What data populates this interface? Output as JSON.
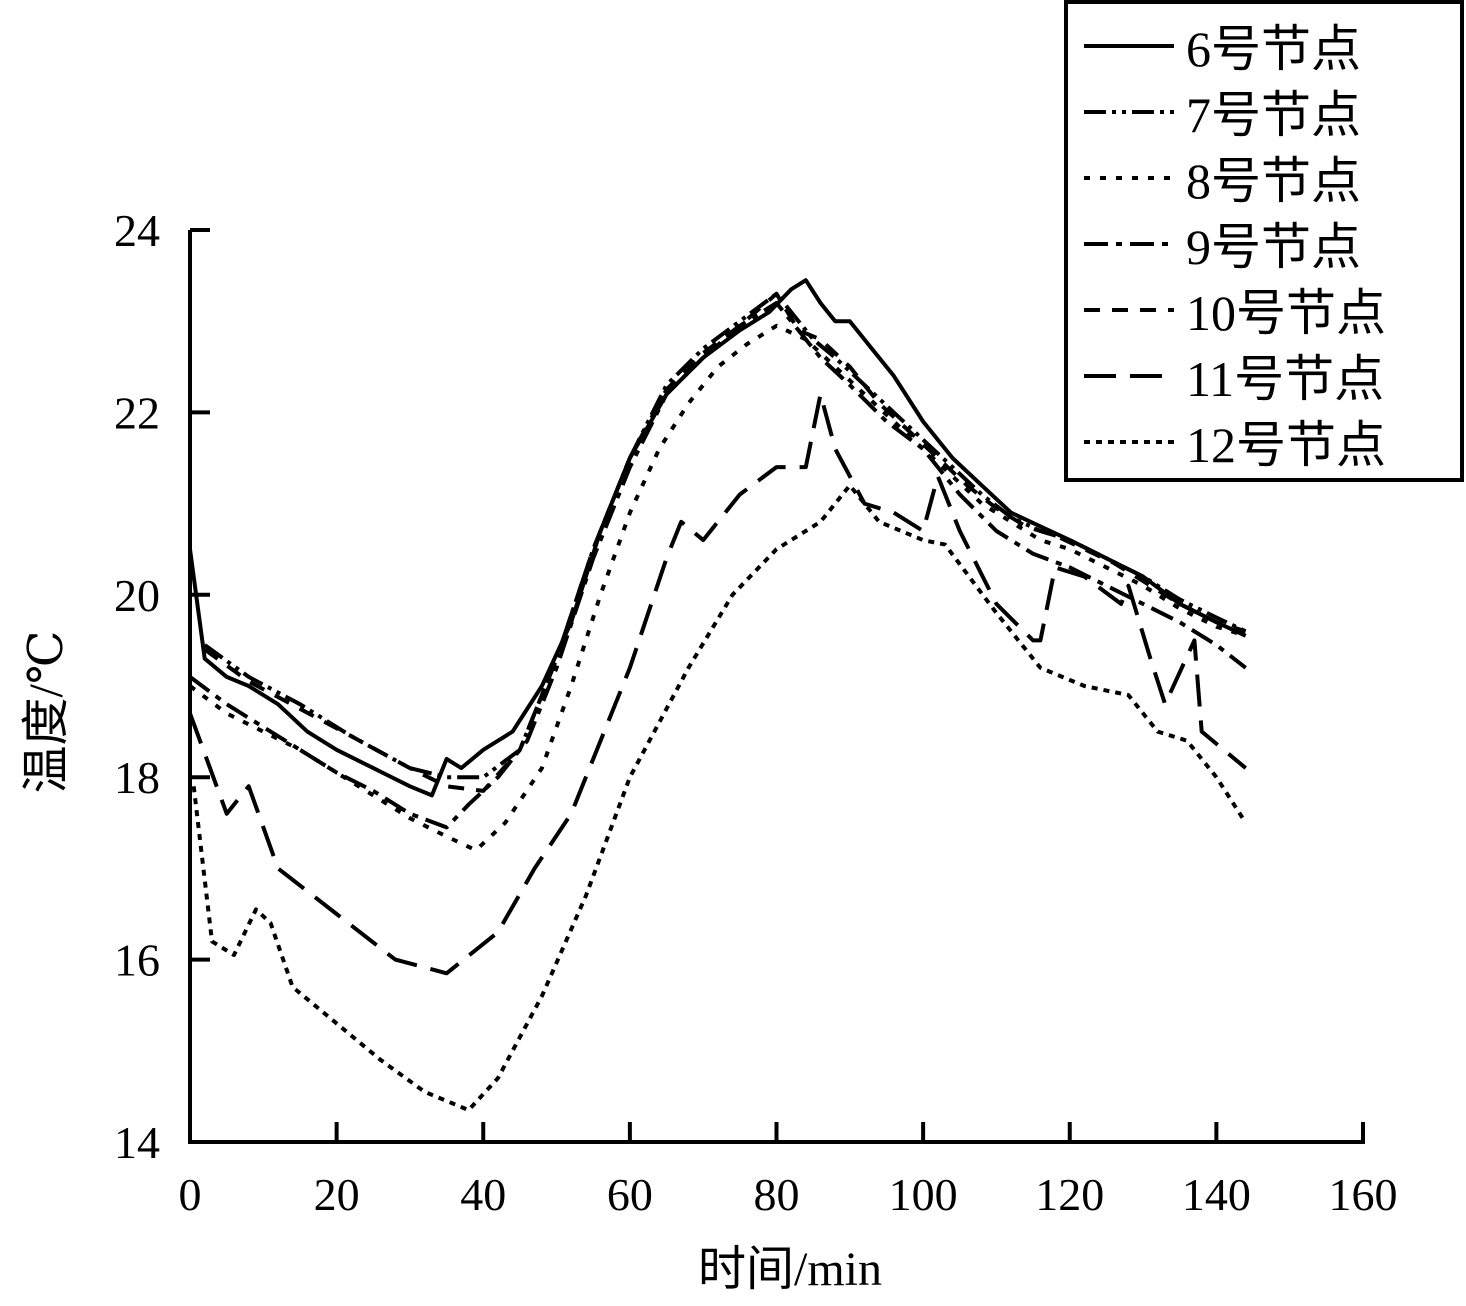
{
  "chart_data": {
    "type": "line",
    "title": "",
    "xlabel": "时间/min",
    "ylabel": "温度/℃",
    "xlim": [
      0,
      160
    ],
    "ylim": [
      14,
      24
    ],
    "xticks": [
      0,
      20,
      40,
      60,
      80,
      100,
      120,
      140,
      160
    ],
    "yticks": [
      14,
      16,
      18,
      20,
      22,
      24
    ],
    "grid": false,
    "legend_position": "top-right",
    "series": [
      {
        "name": "6号节点",
        "style": "solid",
        "points": [
          [
            0,
            20.5
          ],
          [
            2,
            19.3
          ],
          [
            5,
            19.1
          ],
          [
            8,
            19.0
          ],
          [
            12,
            18.8
          ],
          [
            16,
            18.5
          ],
          [
            20,
            18.3
          ],
          [
            25,
            18.1
          ],
          [
            30,
            17.9
          ],
          [
            33,
            17.8
          ],
          [
            35,
            18.2
          ],
          [
            37,
            18.1
          ],
          [
            40,
            18.3
          ],
          [
            44,
            18.5
          ],
          [
            48,
            19.0
          ],
          [
            52,
            19.7
          ],
          [
            56,
            20.7
          ],
          [
            60,
            21.5
          ],
          [
            65,
            22.2
          ],
          [
            70,
            22.6
          ],
          [
            75,
            22.9
          ],
          [
            79,
            23.1
          ],
          [
            82,
            23.35
          ],
          [
            84,
            23.45
          ],
          [
            86,
            23.2
          ],
          [
            88,
            23.0
          ],
          [
            90,
            23.0
          ],
          [
            93,
            22.7
          ],
          [
            96,
            22.4
          ],
          [
            100,
            21.9
          ],
          [
            104,
            21.5
          ],
          [
            108,
            21.2
          ],
          [
            112,
            20.9
          ],
          [
            116,
            20.75
          ],
          [
            120,
            20.6
          ],
          [
            125,
            20.4
          ],
          [
            130,
            20.2
          ],
          [
            135,
            19.9
          ],
          [
            140,
            19.7
          ],
          [
            144,
            19.55
          ]
        ]
      },
      {
        "name": "7号节点",
        "style": "dash-dot-dot",
        "points": [
          [
            2,
            19.45
          ],
          [
            8,
            19.1
          ],
          [
            15,
            18.8
          ],
          [
            22,
            18.45
          ],
          [
            30,
            18.1
          ],
          [
            35,
            18.0
          ],
          [
            40,
            18.0
          ],
          [
            45,
            18.3
          ],
          [
            50,
            19.3
          ],
          [
            55,
            20.5
          ],
          [
            60,
            21.5
          ],
          [
            65,
            22.3
          ],
          [
            70,
            22.7
          ],
          [
            75,
            23.0
          ],
          [
            80,
            23.3
          ],
          [
            82,
            23.1
          ],
          [
            85,
            22.8
          ],
          [
            88,
            22.6
          ],
          [
            92,
            22.3
          ],
          [
            96,
            22.0
          ],
          [
            100,
            21.7
          ],
          [
            104,
            21.4
          ],
          [
            108,
            21.1
          ],
          [
            112,
            20.85
          ],
          [
            116,
            20.7
          ],
          [
            120,
            20.6
          ],
          [
            125,
            20.4
          ],
          [
            130,
            20.2
          ],
          [
            135,
            19.95
          ],
          [
            140,
            19.75
          ],
          [
            144,
            19.6
          ]
        ]
      },
      {
        "name": "8号节点",
        "style": "dotted",
        "points": [
          [
            0,
            19.0
          ],
          [
            5,
            18.7
          ],
          [
            10,
            18.5
          ],
          [
            15,
            18.3
          ],
          [
            20,
            18.05
          ],
          [
            25,
            17.8
          ],
          [
            30,
            17.55
          ],
          [
            35,
            17.35
          ],
          [
            39,
            17.2
          ],
          [
            43,
            17.5
          ],
          [
            48,
            18.1
          ],
          [
            52,
            19.0
          ],
          [
            56,
            20.0
          ],
          [
            60,
            20.9
          ],
          [
            64,
            21.6
          ],
          [
            68,
            22.1
          ],
          [
            72,
            22.5
          ],
          [
            76,
            22.75
          ],
          [
            80,
            22.95
          ],
          [
            84,
            22.8
          ],
          [
            88,
            22.5
          ],
          [
            92,
            22.2
          ],
          [
            96,
            21.9
          ],
          [
            100,
            21.6
          ],
          [
            104,
            21.3
          ],
          [
            108,
            21.0
          ],
          [
            112,
            20.8
          ],
          [
            116,
            20.6
          ],
          [
            120,
            20.5
          ],
          [
            125,
            20.3
          ],
          [
            130,
            20.1
          ],
          [
            135,
            19.85
          ],
          [
            140,
            19.65
          ],
          [
            144,
            19.55
          ]
        ]
      },
      {
        "name": "9号节点",
        "style": "dash-dot",
        "points": [
          [
            0,
            19.1
          ],
          [
            5,
            18.8
          ],
          [
            10,
            18.55
          ],
          [
            15,
            18.3
          ],
          [
            20,
            18.05
          ],
          [
            25,
            17.85
          ],
          [
            30,
            17.6
          ],
          [
            35,
            17.45
          ],
          [
            38,
            17.7
          ],
          [
            42,
            18.0
          ],
          [
            46,
            18.4
          ],
          [
            50,
            19.2
          ],
          [
            55,
            20.4
          ],
          [
            60,
            21.4
          ],
          [
            65,
            22.2
          ],
          [
            70,
            22.6
          ],
          [
            75,
            22.95
          ],
          [
            80,
            23.2
          ],
          [
            83,
            22.9
          ],
          [
            86,
            22.6
          ],
          [
            90,
            22.3
          ],
          [
            95,
            21.9
          ],
          [
            100,
            21.6
          ],
          [
            105,
            21.1
          ],
          [
            110,
            20.7
          ],
          [
            115,
            20.45
          ],
          [
            120,
            20.3
          ],
          [
            125,
            20.1
          ],
          [
            130,
            19.9
          ],
          [
            135,
            19.7
          ],
          [
            140,
            19.45
          ],
          [
            144,
            19.2
          ]
        ]
      },
      {
        "name": "10号节点",
        "style": "dashed",
        "points": [
          [
            2,
            19.4
          ],
          [
            8,
            19.05
          ],
          [
            15,
            18.75
          ],
          [
            22,
            18.45
          ],
          [
            30,
            18.1
          ],
          [
            35,
            17.9
          ],
          [
            40,
            17.85
          ],
          [
            45,
            18.3
          ],
          [
            50,
            19.3
          ],
          [
            55,
            20.5
          ],
          [
            60,
            21.5
          ],
          [
            65,
            22.25
          ],
          [
            70,
            22.65
          ],
          [
            75,
            22.95
          ],
          [
            80,
            23.3
          ],
          [
            83,
            22.9
          ],
          [
            86,
            22.8
          ],
          [
            90,
            22.5
          ],
          [
            94,
            22.1
          ],
          [
            98,
            21.8
          ],
          [
            102,
            21.5
          ],
          [
            106,
            21.2
          ],
          [
            110,
            20.95
          ],
          [
            114,
            20.75
          ],
          [
            118,
            20.65
          ],
          [
            122,
            20.5
          ],
          [
            126,
            20.35
          ],
          [
            130,
            20.15
          ],
          [
            135,
            19.9
          ],
          [
            140,
            19.7
          ],
          [
            144,
            19.6
          ]
        ]
      },
      {
        "name": "11号节点",
        "style": "long-dash",
        "points": [
          [
            0,
            18.7
          ],
          [
            5,
            17.6
          ],
          [
            8,
            17.9
          ],
          [
            12,
            17.0
          ],
          [
            20,
            16.5
          ],
          [
            28,
            16.0
          ],
          [
            35,
            15.85
          ],
          [
            42,
            16.3
          ],
          [
            47,
            17.0
          ],
          [
            52,
            17.6
          ],
          [
            60,
            19.2
          ],
          [
            65,
            20.4
          ],
          [
            67,
            20.8
          ],
          [
            70,
            20.6
          ],
          [
            75,
            21.1
          ],
          [
            80,
            21.4
          ],
          [
            84,
            21.4
          ],
          [
            86,
            22.2
          ],
          [
            88,
            21.6
          ],
          [
            92,
            21.0
          ],
          [
            96,
            20.9
          ],
          [
            100,
            20.7
          ],
          [
            102,
            21.3
          ],
          [
            105,
            20.7
          ],
          [
            110,
            19.9
          ],
          [
            115,
            19.5
          ],
          [
            116,
            19.5
          ],
          [
            118,
            20.3
          ],
          [
            122,
            20.2
          ],
          [
            127,
            19.9
          ],
          [
            128,
            20.1
          ],
          [
            131,
            19.3
          ],
          [
            133,
            18.8
          ],
          [
            137,
            19.5
          ],
          [
            138,
            18.5
          ],
          [
            144,
            18.1
          ]
        ]
      },
      {
        "name": "12号节点",
        "style": "short-dot",
        "points": [
          [
            0.5,
            17.9
          ],
          [
            3,
            16.2
          ],
          [
            6,
            16.05
          ],
          [
            9,
            16.55
          ],
          [
            11,
            16.4
          ],
          [
            14,
            15.7
          ],
          [
            20,
            15.3
          ],
          [
            26,
            14.9
          ],
          [
            32,
            14.55
          ],
          [
            38,
            14.35
          ],
          [
            42,
            14.7
          ],
          [
            48,
            15.6
          ],
          [
            54,
            16.7
          ],
          [
            60,
            18.0
          ],
          [
            68,
            19.2
          ],
          [
            74,
            20.0
          ],
          [
            80,
            20.5
          ],
          [
            86,
            20.8
          ],
          [
            90,
            21.2
          ],
          [
            94,
            20.8
          ],
          [
            100,
            20.6
          ],
          [
            103,
            20.55
          ],
          [
            110,
            19.8
          ],
          [
            116,
            19.2
          ],
          [
            122,
            19.0
          ],
          [
            128,
            18.9
          ],
          [
            132,
            18.5
          ],
          [
            136,
            18.4
          ],
          [
            140,
            18.0
          ],
          [
            144,
            17.5
          ]
        ]
      }
    ]
  }
}
